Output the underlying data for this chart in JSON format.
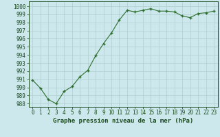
{
  "x": [
    0,
    1,
    2,
    3,
    4,
    5,
    6,
    7,
    8,
    9,
    10,
    11,
    12,
    13,
    14,
    15,
    16,
    17,
    18,
    19,
    20,
    21,
    22,
    23
  ],
  "y": [
    990.9,
    989.9,
    988.5,
    988.0,
    989.5,
    990.1,
    991.3,
    992.1,
    993.9,
    995.4,
    996.7,
    998.3,
    999.5,
    999.3,
    999.5,
    999.7,
    999.4,
    999.4,
    999.3,
    998.8,
    998.6,
    999.1,
    999.2,
    999.4
  ],
  "line_color": "#2d6e2d",
  "marker_color": "#2d6e2d",
  "bg_color": "#cce8ec",
  "grid_color": "#b0cece",
  "ylabel_ticks": [
    988,
    989,
    990,
    991,
    992,
    993,
    994,
    995,
    996,
    997,
    998,
    999,
    1000
  ],
  "xlabel": "Graphe pression niveau de la mer (hPa)",
  "ymin": 987.6,
  "ymax": 1000.6,
  "xmin": -0.5,
  "xmax": 23.5,
  "xlabel_fontsize": 6.5,
  "tick_fontsize": 5.5,
  "text_color": "#1a4a1a"
}
